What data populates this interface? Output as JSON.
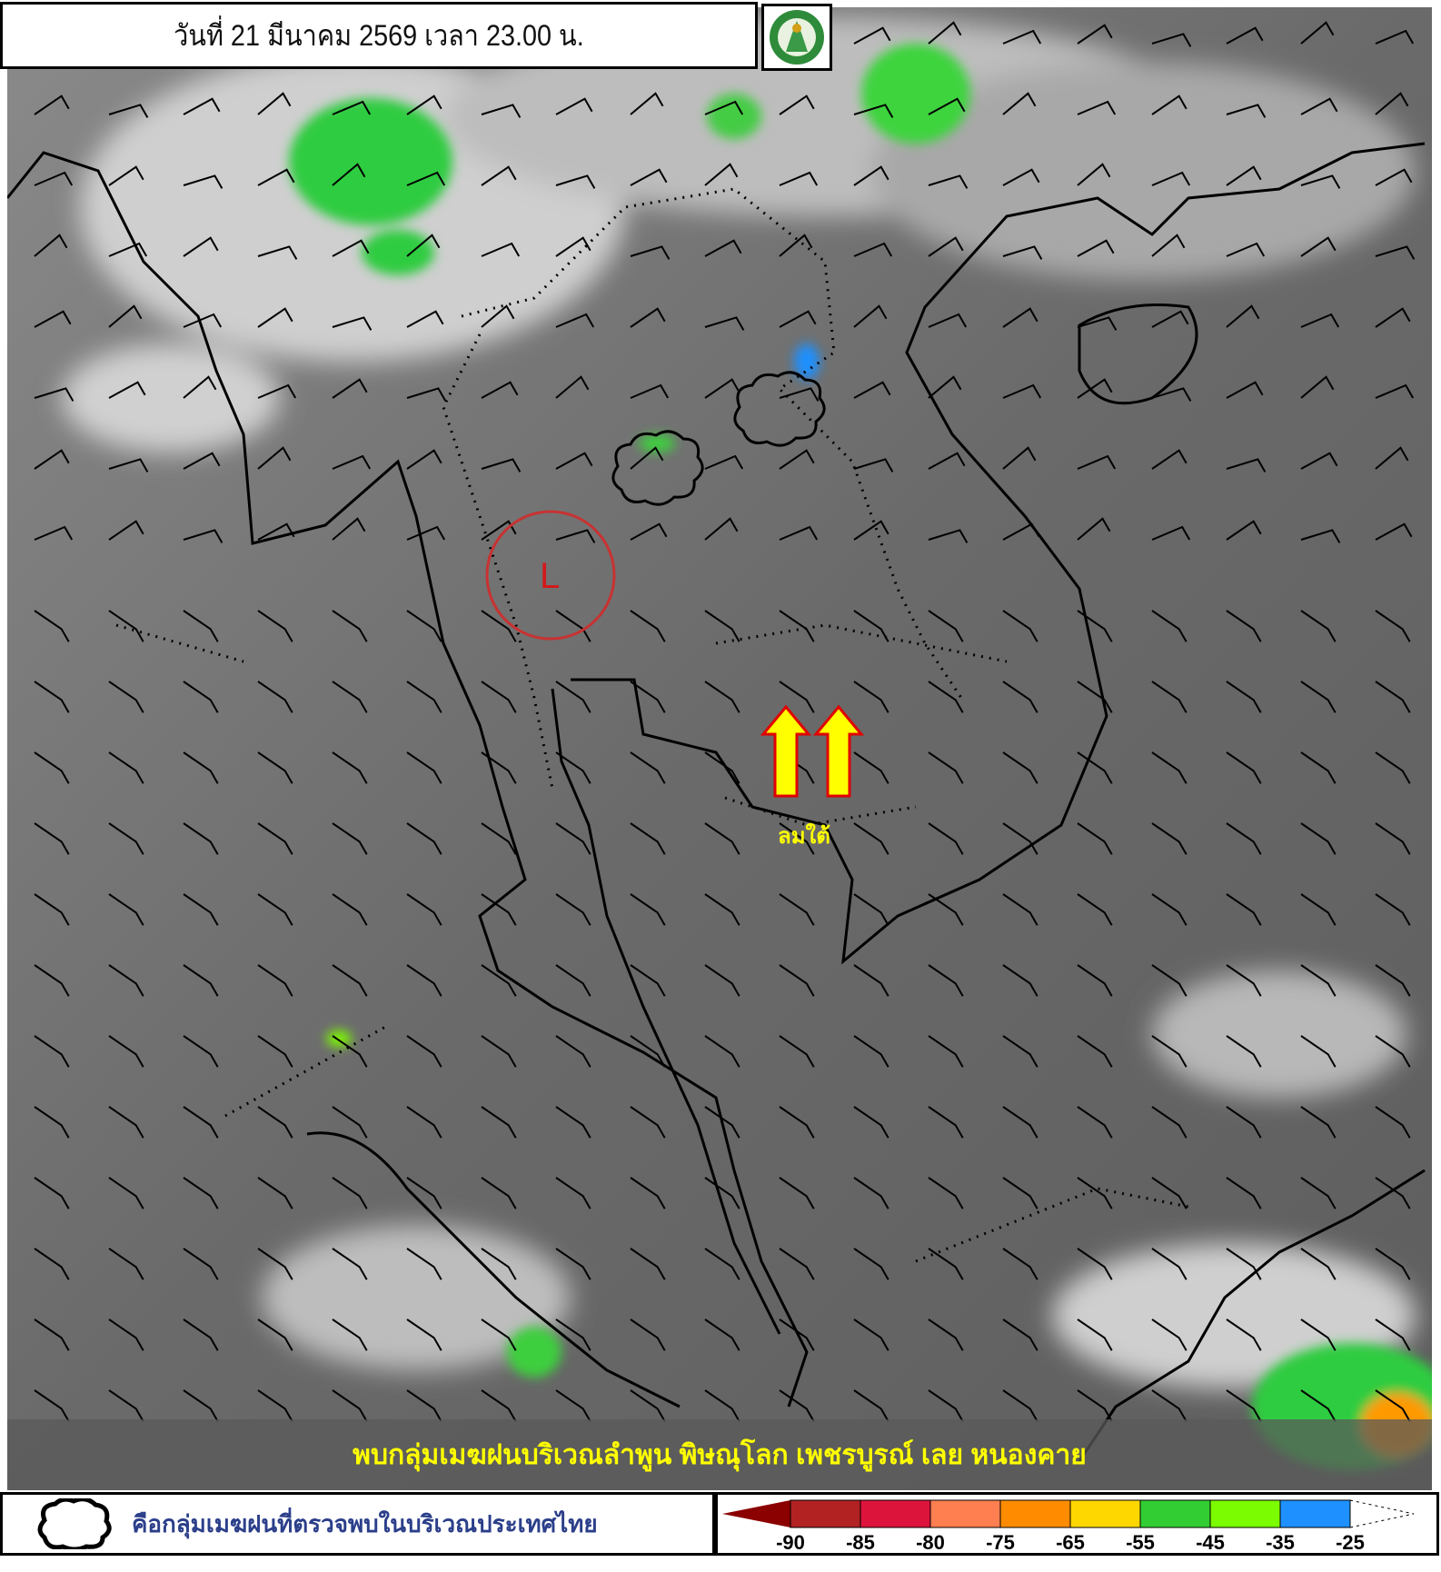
{
  "header": {
    "title": "วันที่ 21 มีนาคม 2569 เวลา 23.00 น.",
    "logo_icon": "tmd-logo-icon"
  },
  "map": {
    "low_pressure_label": "L",
    "wind_label": "ลมใต้",
    "arrow_color": "#ffff00",
    "arrow_outline": "#e00000",
    "low_circle_color": "#c83232"
  },
  "banner": {
    "text": "พบกลุ่มเมฆฝนบริเวณลำพูน พิษณุโลก เพชรบูรณ์ เลย หนองคาย"
  },
  "legend": {
    "cloud_description": "คือกลุ่มเมฆฝนที่ตรวจพบในบริเวณประเทศไทย",
    "scale_colors": [
      "#8b0000",
      "#b22222",
      "#dc143c",
      "#ff7f50",
      "#ff8c00",
      "#ffd700",
      "#32cd32",
      "#7cfc00",
      "#1e90ff"
    ],
    "scale_labels": [
      "-90",
      "-85",
      "-80",
      "-75",
      "-65",
      "-55",
      "-45",
      "-35",
      "-25"
    ]
  }
}
